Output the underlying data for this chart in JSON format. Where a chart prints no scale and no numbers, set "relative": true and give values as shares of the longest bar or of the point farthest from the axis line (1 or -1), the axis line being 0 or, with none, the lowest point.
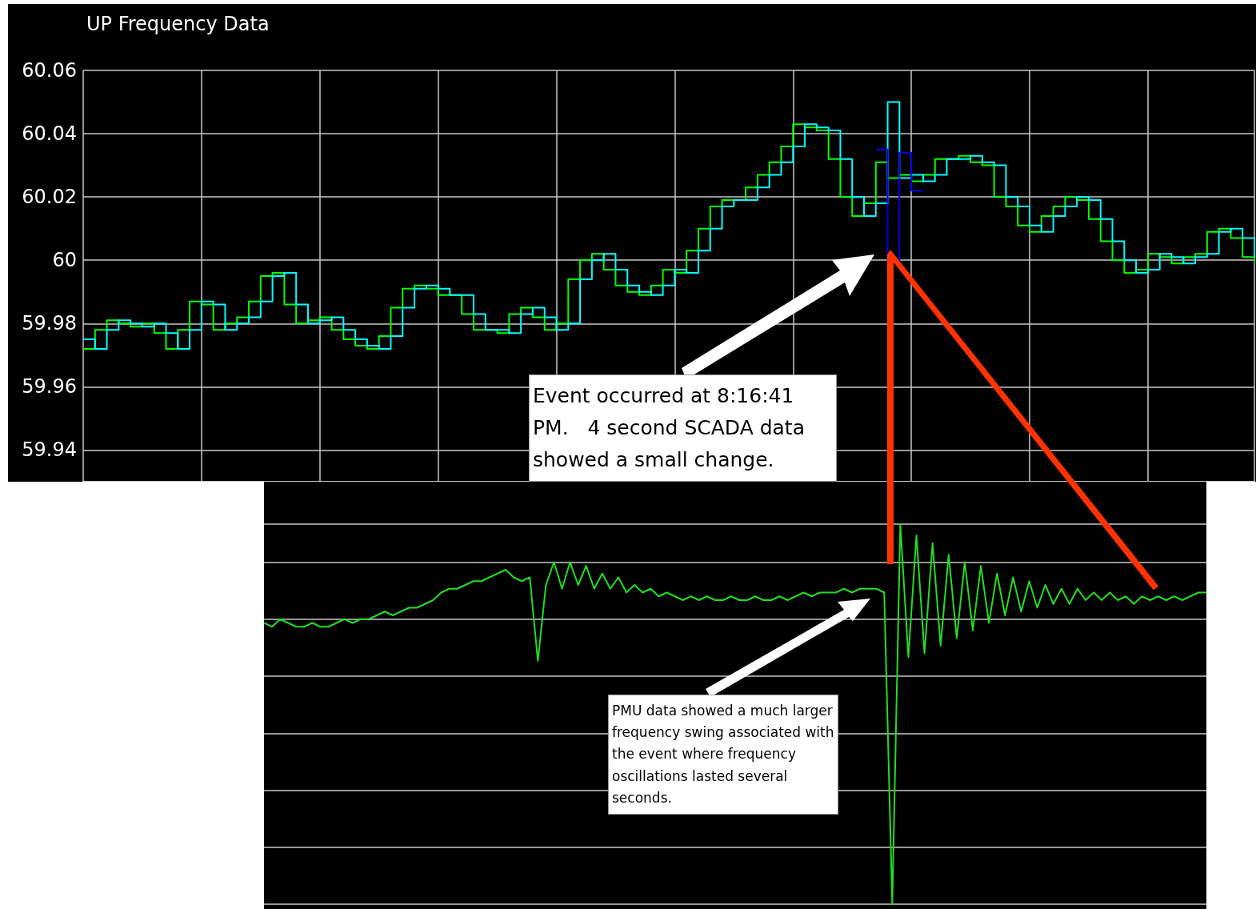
{
  "chart_data": [
    {
      "type": "step",
      "title": "UP Frequency Data",
      "categories": [
        null,
        null,
        null,
        null,
        null,
        null,
        null,
        null,
        null,
        null,
        null,
        null,
        null,
        null,
        null,
        null,
        null,
        null,
        null,
        null,
        null,
        null,
        null,
        null,
        null,
        null,
        null,
        null,
        null,
        null,
        null,
        null,
        null,
        null,
        null,
        null,
        null,
        null,
        null,
        null,
        null,
        null,
        null,
        null,
        null,
        null,
        null,
        null,
        null,
        null,
        null,
        null,
        null,
        null,
        null,
        null,
        null,
        null,
        null,
        null,
        null,
        null,
        null,
        null,
        null,
        null,
        null,
        null,
        null,
        null,
        null,
        null,
        null,
        null,
        null,
        null,
        null,
        null,
        null,
        null,
        null,
        null,
        null,
        null,
        null,
        null,
        null,
        null,
        null,
        null,
        null,
        null,
        null,
        null,
        null,
        null,
        null,
        null,
        null,
        null
      ],
      "series": [
        {
          "color": "#00ff00",
          "values": [
            59.972,
            59.978,
            59.981,
            59.98,
            59.979,
            59.98,
            59.977,
            59.972,
            59.978,
            59.987,
            59.986,
            59.978,
            59.98,
            59.982,
            59.987,
            59.995,
            59.996,
            59.986,
            59.98,
            59.981,
            59.982,
            59.978,
            59.975,
            59.973,
            59.972,
            59.976,
            59.985,
            59.991,
            59.992,
            59.991,
            59.989,
            59.989,
            59.983,
            59.978,
            59.978,
            59.977,
            59.983,
            59.985,
            59.982,
            59.978,
            59.98,
            59.994,
            60.0,
            60.002,
            59.997,
            59.992,
            59.99,
            59.989,
            59.992,
            59.997,
            59.996,
            60.003,
            60.01,
            60.017,
            60.019,
            60.019,
            60.023,
            60.027,
            60.031,
            60.036,
            60.043,
            60.042,
            60.041,
            60.032,
            60.02,
            60.014,
            60.018,
            60.031,
            60.026,
            60.027,
            60.025,
            60.027,
            60.032,
            60.032,
            60.033,
            60.031,
            60.03,
            60.02,
            60.017,
            60.011,
            60.009,
            60.014,
            60.017,
            60.02,
            60.019,
            60.013,
            60.006,
            60.0,
            59.996,
            59.997,
            60.002,
            60.001,
            59.999,
            60.001,
            60.002,
            60.009,
            60.01,
            60.007,
            60.001,
            59.999
          ]
        },
        {
          "color": "#00ffff",
          "values": [
            59.975,
            59.972,
            59.978,
            59.981,
            59.98,
            59.979,
            59.98,
            59.977,
            59.972,
            59.978,
            59.987,
            59.986,
            59.978,
            59.98,
            59.982,
            59.987,
            59.995,
            59.996,
            59.986,
            59.98,
            59.981,
            59.982,
            59.978,
            59.975,
            59.973,
            59.972,
            59.976,
            59.985,
            59.991,
            59.992,
            59.991,
            59.989,
            59.989,
            59.983,
            59.978,
            59.978,
            59.977,
            59.983,
            59.985,
            59.982,
            59.978,
            59.98,
            59.994,
            60.0,
            60.002,
            59.997,
            59.992,
            59.99,
            59.989,
            59.992,
            59.997,
            59.996,
            60.003,
            60.01,
            60.017,
            60.019,
            60.019,
            60.023,
            60.027,
            60.031,
            60.036,
            60.043,
            60.042,
            60.041,
            60.032,
            60.02,
            60.014,
            60.018,
            60.05,
            60.026,
            60.027,
            60.025,
            60.027,
            60.032,
            60.032,
            60.033,
            60.031,
            60.03,
            60.02,
            60.017,
            60.011,
            60.009,
            60.014,
            60.017,
            60.02,
            60.019,
            60.013,
            60.006,
            60.0,
            59.996,
            59.997,
            60.002,
            60.001,
            59.999,
            60.001,
            60.002,
            60.009,
            60.01,
            60.007,
            60.001
          ]
        },
        {
          "color": "#0000ee",
          "values": [
            null,
            null,
            null,
            null,
            null,
            null,
            null,
            null,
            null,
            null,
            null,
            null,
            null,
            null,
            null,
            null,
            null,
            null,
            null,
            null,
            null,
            null,
            null,
            null,
            null,
            null,
            null,
            null,
            null,
            null,
            null,
            null,
            null,
            null,
            null,
            null,
            null,
            null,
            null,
            null,
            null,
            null,
            null,
            null,
            null,
            null,
            null,
            null,
            null,
            null,
            null,
            null,
            null,
            null,
            null,
            null,
            null,
            null,
            null,
            null,
            null,
            null,
            null,
            null,
            null,
            null,
            null,
            60.035,
            60.0,
            60.034,
            60.022,
            60.022,
            null,
            null,
            null,
            null,
            null,
            null,
            null,
            null,
            null,
            null,
            null,
            null,
            null,
            null,
            null,
            null,
            null,
            null,
            null,
            null,
            null,
            null,
            null,
            null,
            null,
            null,
            null,
            null
          ]
        }
      ],
      "ylim": [
        59.93,
        60.06
      ],
      "yticks": [
        59.94,
        59.96,
        59.98,
        60,
        60.02,
        60.04,
        60.06
      ],
      "grid": true,
      "tick_labels": "y",
      "annotations": [
        "Event occurred at 8:16:41 PM.   4 second SCADA data showed a small change."
      ]
    },
    {
      "type": "line",
      "categories": [
        null,
        null,
        null,
        null,
        null,
        null,
        null,
        null,
        null,
        null,
        null,
        null,
        null,
        null,
        null,
        null,
        null,
        null,
        null,
        null,
        null,
        null,
        null,
        null,
        null,
        null,
        null,
        null,
        null,
        null,
        null,
        null,
        null,
        null,
        null,
        null,
        null,
        null,
        null,
        null,
        null,
        null,
        null,
        null,
        null,
        null,
        null,
        null,
        null,
        null,
        null,
        null,
        null,
        null,
        null,
        null,
        null,
        null,
        null,
        null,
        null,
        null,
        null,
        null,
        null,
        null,
        null,
        null,
        null,
        null,
        null,
        null,
        null,
        null,
        null,
        null,
        null,
        null,
        null,
        null,
        null,
        null,
        null,
        null,
        null,
        null,
        null,
        null,
        null,
        null,
        null,
        null,
        null,
        null,
        null,
        null,
        null,
        null,
        null,
        null,
        null,
        null,
        null,
        null,
        null,
        null,
        null,
        null,
        null,
        null,
        null,
        null,
        null,
        null,
        null,
        null,
        null,
        null
      ],
      "series": [
        {
          "color": "#22dd22",
          "values": [
            0.74,
            0.73,
            0.75,
            0.74,
            0.73,
            0.73,
            0.74,
            0.73,
            0.73,
            0.74,
            0.75,
            0.74,
            0.75,
            0.75,
            0.76,
            0.77,
            0.76,
            0.77,
            0.78,
            0.78,
            0.79,
            0.8,
            0.82,
            0.83,
            0.83,
            0.84,
            0.85,
            0.85,
            0.86,
            0.87,
            0.88,
            0.86,
            0.85,
            0.86,
            0.64,
            0.84,
            0.9,
            0.83,
            0.9,
            0.84,
            0.89,
            0.83,
            0.87,
            0.83,
            0.86,
            0.82,
            0.84,
            0.82,
            0.83,
            0.81,
            0.82,
            0.81,
            0.8,
            0.81,
            0.8,
            0.81,
            0.8,
            0.8,
            0.81,
            0.8,
            0.8,
            0.81,
            0.8,
            0.8,
            0.81,
            0.8,
            0.81,
            0.82,
            0.81,
            0.82,
            0.82,
            0.82,
            0.83,
            0.82,
            0.83,
            0.83,
            0.83,
            0.82,
            0.0,
            1.0,
            0.65,
            0.97,
            0.66,
            0.95,
            0.68,
            0.92,
            0.7,
            0.9,
            0.72,
            0.89,
            0.74,
            0.87,
            0.76,
            0.86,
            0.77,
            0.85,
            0.78,
            0.84,
            0.79,
            0.83,
            0.79,
            0.83,
            0.8,
            0.82,
            0.8,
            0.82,
            0.8,
            0.81,
            0.79,
            0.81,
            0.8,
            0.81,
            0.8,
            0.81,
            0.8,
            0.81,
            0.82,
            0.82
          ]
        }
      ],
      "relative": true,
      "grid": "y",
      "tick_labels": false,
      "annotations": [
        "PMU data showed a much larger frequency swing associated with the event where frequency oscillations lasted several seconds."
      ]
    }
  ]
}
